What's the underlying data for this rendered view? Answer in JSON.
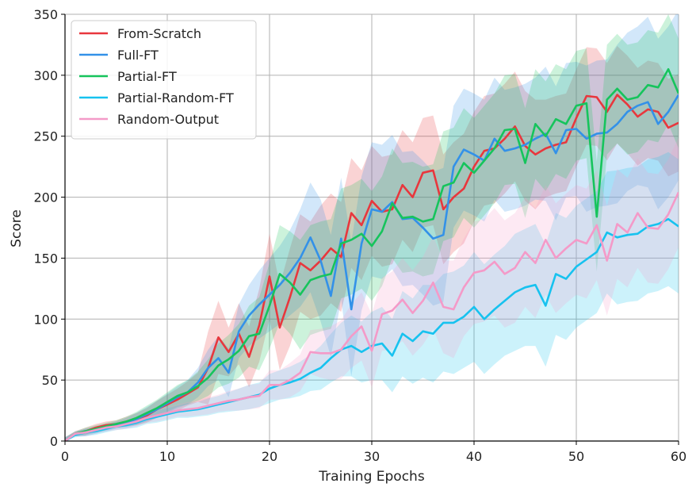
{
  "chart_data": {
    "type": "line",
    "title": "",
    "xlabel": "Training Epochs",
    "ylabel": "Score",
    "xlim": [
      0,
      60
    ],
    "ylim": [
      0,
      350
    ],
    "xticks": [
      0,
      10,
      20,
      30,
      40,
      50,
      60
    ],
    "yticks": [
      0,
      50,
      100,
      150,
      200,
      250,
      300,
      350
    ],
    "grid": true,
    "legend_position": "top-left",
    "x": [
      0,
      1,
      2,
      3,
      4,
      5,
      6,
      7,
      8,
      9,
      10,
      11,
      12,
      13,
      14,
      15,
      16,
      17,
      18,
      19,
      20,
      21,
      22,
      23,
      24,
      25,
      26,
      27,
      28,
      29,
      30,
      31,
      32,
      33,
      34,
      35,
      36,
      37,
      38,
      39,
      40,
      41,
      42,
      43,
      44,
      45,
      46,
      47,
      48,
      49,
      50,
      51,
      52,
      53,
      54,
      55,
      56,
      57,
      58,
      59,
      60
    ],
    "series": [
      {
        "name": "From-Scratch",
        "color": "#e8373d",
        "values": [
          0,
          6,
          8,
          11,
          13,
          14,
          16,
          18,
          21,
          26,
          30,
          34,
          39,
          44,
          60,
          85,
          73,
          88,
          69,
          95,
          135,
          93,
          118,
          146,
          140,
          148,
          158,
          151,
          187,
          177,
          197,
          188,
          190,
          210,
          200,
          220,
          222,
          190,
          200,
          207,
          225,
          238,
          240,
          248,
          258,
          242,
          235,
          240,
          243,
          245,
          265,
          283,
          282,
          270,
          284,
          276,
          266,
          272,
          270,
          257,
          261
        ],
        "band": [
          3,
          2,
          3,
          3,
          3,
          3,
          4,
          5,
          6,
          7,
          8,
          9,
          10,
          12,
          30,
          30,
          20,
          25,
          25,
          30,
          35,
          35,
          40,
          40,
          40,
          45,
          45,
          45,
          45,
          45,
          45,
          45,
          45,
          45,
          45,
          45,
          45,
          45,
          45,
          45,
          45,
          45,
          45,
          45,
          45,
          45,
          45,
          40,
          40,
          40,
          40,
          40,
          40,
          40,
          40,
          40,
          40,
          40,
          40,
          40,
          40
        ]
      },
      {
        "name": "Full-FT",
        "color": "#3391e8",
        "values": [
          0,
          6,
          7,
          9,
          11,
          13,
          15,
          18,
          22,
          26,
          31,
          36,
          40,
          48,
          60,
          68,
          56,
          90,
          103,
          112,
          120,
          128,
          138,
          150,
          167,
          148,
          119,
          166,
          108,
          162,
          190,
          188,
          196,
          182,
          183,
          175,
          166,
          169,
          225,
          239,
          235,
          230,
          248,
          238,
          240,
          243,
          248,
          252,
          236,
          255,
          256,
          248,
          252,
          253,
          260,
          270,
          275,
          278,
          260,
          270,
          284
        ],
        "band": [
          3,
          2,
          3,
          3,
          3,
          3,
          4,
          5,
          6,
          7,
          8,
          9,
          10,
          12,
          15,
          18,
          20,
          22,
          25,
          28,
          30,
          32,
          35,
          40,
          45,
          50,
          50,
          50,
          55,
          55,
          55,
          55,
          55,
          55,
          55,
          55,
          55,
          55,
          50,
          50,
          50,
          50,
          50,
          50,
          50,
          50,
          50,
          55,
          55,
          55,
          55,
          60,
          60,
          60,
          65,
          65,
          65,
          70,
          70,
          70,
          70
        ]
      },
      {
        "name": "Partial-FT",
        "color": "#16c45c",
        "values": [
          0,
          6,
          8,
          10,
          12,
          14,
          16,
          19,
          23,
          27,
          32,
          37,
          40,
          45,
          52,
          62,
          67,
          74,
          86,
          88,
          111,
          137,
          130,
          120,
          132,
          135,
          137,
          162,
          165,
          170,
          160,
          172,
          195,
          183,
          184,
          180,
          182,
          209,
          212,
          228,
          220,
          230,
          240,
          255,
          256,
          228,
          260,
          250,
          264,
          260,
          275,
          277,
          184,
          280,
          289,
          280,
          282,
          292,
          290,
          305,
          285
        ],
        "band": [
          3,
          2,
          3,
          3,
          3,
          3,
          4,
          5,
          6,
          7,
          8,
          9,
          10,
          12,
          15,
          18,
          20,
          22,
          25,
          30,
          35,
          40,
          42,
          45,
          45,
          45,
          45,
          45,
          45,
          45,
          45,
          45,
          45,
          45,
          45,
          45,
          45,
          45,
          45,
          45,
          45,
          45,
          45,
          45,
          45,
          45,
          45,
          45,
          45,
          45,
          45,
          45,
          45,
          45,
          45,
          45,
          45,
          45,
          45,
          45,
          45
        ]
      },
      {
        "name": "Partial-Random-FT",
        "color": "#17c2ef",
        "values": [
          0,
          5,
          7,
          8,
          10,
          12,
          13,
          15,
          18,
          20,
          22,
          24,
          25,
          26,
          28,
          30,
          32,
          34,
          36,
          38,
          43,
          46,
          48,
          51,
          56,
          60,
          68,
          75,
          78,
          73,
          78,
          80,
          70,
          88,
          82,
          90,
          88,
          97,
          97,
          102,
          110,
          100,
          108,
          115,
          122,
          126,
          128,
          111,
          137,
          133,
          143,
          149,
          155,
          171,
          167,
          169,
          170,
          176,
          178,
          182,
          176
        ],
        "band": [
          3,
          2,
          3,
          3,
          3,
          3,
          3,
          4,
          4,
          5,
          5,
          5,
          6,
          6,
          7,
          7,
          8,
          9,
          10,
          10,
          12,
          12,
          13,
          14,
          15,
          18,
          20,
          22,
          25,
          25,
          28,
          30,
          30,
          35,
          35,
          38,
          40,
          40,
          42,
          42,
          45,
          45,
          45,
          45,
          48,
          48,
          50,
          50,
          50,
          50,
          50,
          50,
          50,
          50,
          55,
          55,
          55,
          55,
          55,
          55,
          55
        ]
      },
      {
        "name": "Random-Output",
        "color": "#f49ac8",
        "values": [
          0,
          6,
          7,
          9,
          11,
          12,
          14,
          16,
          19,
          21,
          23,
          25,
          26,
          27,
          29,
          31,
          33,
          34,
          36,
          37,
          46,
          46,
          50,
          56,
          73,
          72,
          72,
          75,
          86,
          94,
          74,
          104,
          107,
          116,
          105,
          115,
          130,
          110,
          108,
          126,
          138,
          140,
          147,
          137,
          142,
          155,
          146,
          165,
          150,
          158,
          165,
          162,
          177,
          148,
          178,
          171,
          187,
          175,
          174,
          186,
          204
        ],
        "band": [
          3,
          2,
          3,
          3,
          3,
          3,
          4,
          4,
          4,
          5,
          5,
          5,
          6,
          6,
          7,
          7,
          8,
          9,
          10,
          10,
          12,
          12,
          14,
          15,
          18,
          20,
          22,
          24,
          26,
          28,
          30,
          30,
          32,
          34,
          35,
          36,
          38,
          38,
          40,
          40,
          42,
          42,
          44,
          44,
          45,
          45,
          45,
          45,
          45,
          45,
          45,
          45,
          45,
          45,
          45,
          45,
          45,
          45,
          45,
          45,
          45
        ]
      }
    ]
  }
}
